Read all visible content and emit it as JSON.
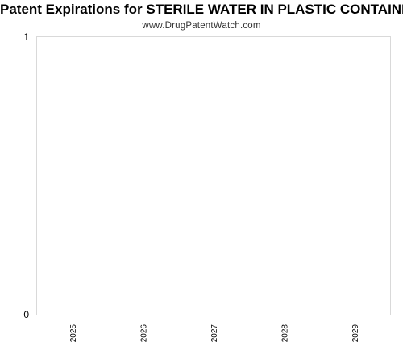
{
  "chart_data": {
    "type": "bar",
    "title": "Patent Expirations for STERILE WATER IN PLASTIC CONTAINER",
    "subtitle": "www.DrugPatentWatch.com",
    "categories": [
      "2025",
      "2026",
      "2027",
      "2028",
      "2029"
    ],
    "values": [
      0,
      0,
      0,
      0,
      0
    ],
    "ylim": [
      0,
      1
    ],
    "yticks": [
      "0",
      "1"
    ],
    "grid": false,
    "colors": {
      "plot_border": "#d9d9d9",
      "text": "#000000"
    }
  }
}
